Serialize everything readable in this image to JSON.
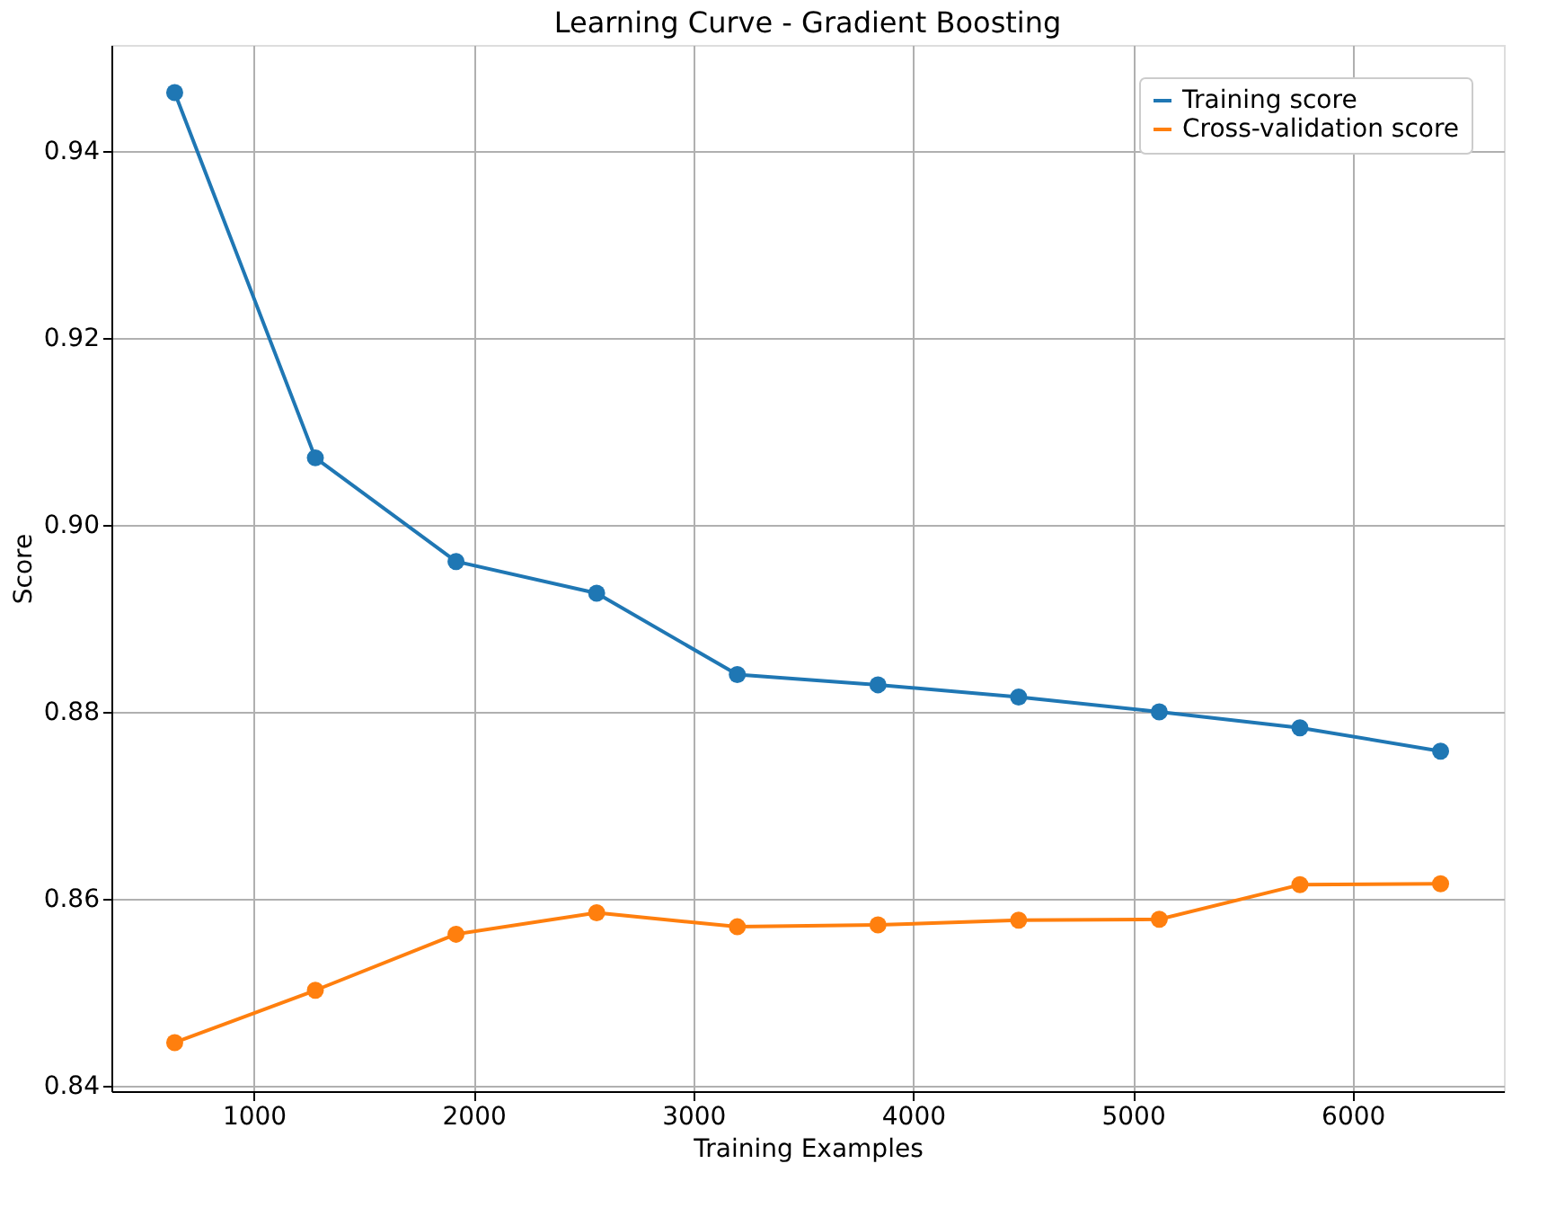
{
  "chart_data": {
    "type": "line",
    "title": "Learning Curve - Gradient Boosting",
    "xlabel": "Training Examples",
    "ylabel": "Score",
    "x": [
      640,
      1280,
      1920,
      2560,
      3200,
      3840,
      4480,
      5120,
      5760,
      6400
    ],
    "series": [
      {
        "name": "Training score",
        "color": "#1f77b4",
        "values": [
          0.9463,
          0.9072,
          0.8961,
          0.8927,
          0.884,
          0.8829,
          0.8816,
          0.88,
          0.8783,
          0.8758
        ]
      },
      {
        "name": "Cross-validation score",
        "color": "#ff7f0e",
        "values": [
          0.8446,
          0.8502,
          0.8562,
          0.8585,
          0.857,
          0.8572,
          0.8577,
          0.8578,
          0.8615,
          0.8616
        ]
      }
    ],
    "xlim": [
      352,
      6688
    ],
    "xticks": [
      1000,
      2000,
      3000,
      4000,
      5000,
      6000
    ],
    "ylim": [
      0.8394,
      0.9514
    ],
    "yticks": [
      0.84,
      0.86,
      0.88,
      {
        "value": 0.9,
        "label": "0.90"
      },
      0.92,
      0.94
    ],
    "grid": true,
    "legend": "top right",
    "marker": "circle",
    "line_style": "solid"
  }
}
